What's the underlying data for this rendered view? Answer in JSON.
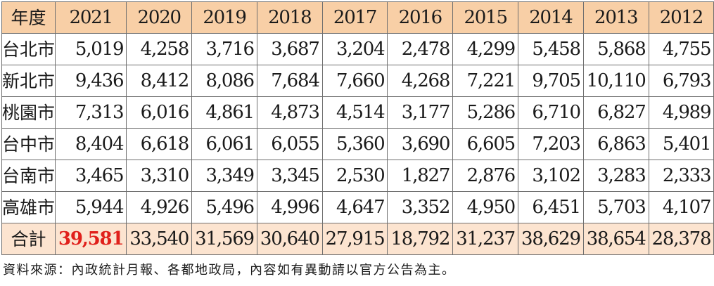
{
  "table": {
    "header": {
      "label": "年度",
      "years": [
        "2021",
        "2020",
        "2019",
        "2018",
        "2017",
        "2016",
        "2015",
        "2014",
        "2013",
        "2012"
      ]
    },
    "rows": [
      {
        "label": "台北市",
        "values": [
          "5,019",
          "4,258",
          "3,716",
          "3,687",
          "3,204",
          "2,478",
          "4,299",
          "5,458",
          "5,868",
          "4,755"
        ]
      },
      {
        "label": "新北市",
        "values": [
          "9,436",
          "8,412",
          "8,086",
          "7,684",
          "7,660",
          "4,268",
          "7,221",
          "9,705",
          "10,110",
          "6,793"
        ]
      },
      {
        "label": "桃園市",
        "values": [
          "7,313",
          "6,016",
          "4,861",
          "4,873",
          "4,514",
          "3,177",
          "5,286",
          "6,710",
          "6,827",
          "4,989"
        ]
      },
      {
        "label": "台中市",
        "values": [
          "8,404",
          "6,618",
          "6,061",
          "6,055",
          "5,360",
          "3,690",
          "6,605",
          "7,203",
          "6,863",
          "5,401"
        ]
      },
      {
        "label": "台南市",
        "values": [
          "3,465",
          "3,310",
          "3,349",
          "3,345",
          "2,530",
          "1,827",
          "2,876",
          "3,102",
          "3,283",
          "2,333"
        ]
      },
      {
        "label": "高雄市",
        "values": [
          "5,944",
          "4,926",
          "5,496",
          "4,996",
          "4,647",
          "3,352",
          "4,950",
          "6,451",
          "5,703",
          "4,107"
        ]
      }
    ],
    "total": {
      "label": "合計",
      "values": [
        "39,581",
        "33,540",
        "31,569",
        "30,640",
        "27,915",
        "18,792",
        "31,237",
        "38,629",
        "38,654",
        "28,378"
      ]
    }
  },
  "colors": {
    "header_bg": "#f8cfa6",
    "total_bg": "#fce4d0",
    "highlight": "#e0201b",
    "border": "#6f6f6f"
  },
  "source_note": "資料來源：內政統計月報、各都地政局，內容如有異動請以官方公告為主。"
}
